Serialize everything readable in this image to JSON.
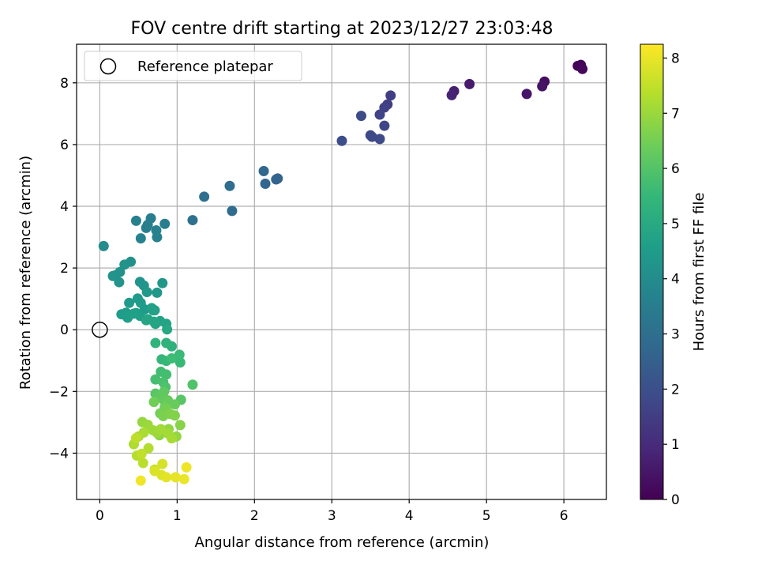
{
  "chart_data": {
    "type": "scatter",
    "title": "FOV centre drift starting at 2023/12/27 23:03:48",
    "xlabel": "Angular distance from reference (arcmin)",
    "ylabel": "Rotation from reference (arcmin)",
    "xlim": [
      -0.3,
      6.55
    ],
    "ylim": [
      -5.5,
      9.25
    ],
    "xticks": [
      0,
      1,
      2,
      3,
      4,
      5,
      6
    ],
    "yticks": [
      -4,
      -2,
      0,
      2,
      4,
      6,
      8
    ],
    "grid": true,
    "legend": {
      "position": "top-left",
      "entries": [
        "Reference platepar"
      ]
    },
    "reference_point": {
      "x": 0,
      "y": 0,
      "label": "Reference platepar"
    },
    "colorbar": {
      "label": "Hours from first FF file",
      "colormap": "viridis",
      "range": [
        0,
        8.25
      ],
      "ticks": [
        0,
        1,
        2,
        3,
        4,
        5,
        6,
        7,
        8
      ]
    },
    "series": [
      {
        "x": [
          6.18,
          6.22,
          6.24,
          5.75,
          5.72,
          5.52,
          4.78,
          4.58,
          4.55,
          3.76,
          3.72,
          3.68,
          3.62,
          3.68,
          3.5,
          3.52,
          3.62,
          3.38,
          3.13,
          2.3,
          2.28,
          2.14,
          2.12,
          1.71,
          1.68,
          1.35,
          1.2,
          0.84,
          0.66,
          0.62,
          0.6,
          0.73,
          0.74,
          0.47,
          0.53,
          0.05,
          0.2,
          0.4,
          0.32,
          0.26,
          0.25,
          0.17,
          0.52,
          0.57,
          0.81,
          0.61,
          0.74,
          0.49,
          0.38,
          0.53,
          0.58,
          0.69,
          0.28,
          0.34,
          0.47,
          0.52,
          0.36,
          0.44,
          0.62,
          0.67,
          0.71,
          0.78,
          0.86,
          0.72,
          0.6,
          0.7,
          0.87,
          0.93,
          0.86,
          0.72,
          0.8,
          0.86,
          1.04,
          1.03,
          0.93,
          0.79,
          0.86,
          0.72,
          0.82,
          0.85,
          1.2,
          1.05,
          0.72,
          0.76,
          0.83,
          0.82,
          0.88,
          0.97,
          0.84,
          0.7,
          0.78,
          0.86,
          0.82,
          0.91,
          0.97,
          1.04,
          0.77,
          0.89,
          0.99,
          0.55,
          0.62,
          0.69,
          0.74,
          0.79,
          0.88,
          0.93,
          0.5,
          0.57,
          0.44,
          0.63,
          0.48,
          0.56,
          0.47,
          0.54,
          0.71,
          0.81,
          0.71,
          0.8,
          0.86,
          0.98,
          1.09,
          1.12,
          0.53
        ],
        "y": [
          8.55,
          8.58,
          8.45,
          8.04,
          7.89,
          7.64,
          7.96,
          7.73,
          7.6,
          7.59,
          7.3,
          7.2,
          6.97,
          6.61,
          6.3,
          6.25,
          6.18,
          6.93,
          6.12,
          4.9,
          4.87,
          4.73,
          5.14,
          3.85,
          4.66,
          4.31,
          3.55,
          3.43,
          3.61,
          3.4,
          3.3,
          3.22,
          3.0,
          3.53,
          2.96,
          2.71,
          1.76,
          2.2,
          2.11,
          1.87,
          1.54,
          1.74,
          1.55,
          1.43,
          1.51,
          1.22,
          1.2,
          1.01,
          0.87,
          0.87,
          0.66,
          0.63,
          0.5,
          0.55,
          0.54,
          0.45,
          0.39,
          0.52,
          0.34,
          0.7,
          0.63,
          0.28,
          0.19,
          0.19,
          0.31,
          0.26,
          0.01,
          -0.54,
          -0.43,
          -0.43,
          -0.96,
          -1.01,
          -1.06,
          -0.81,
          -0.93,
          -1.36,
          -1.45,
          -1.61,
          -1.7,
          -1.86,
          -1.78,
          -2.27,
          -2.07,
          -2.18,
          -2.01,
          -2.26,
          -2.29,
          -2.42,
          -2.51,
          -2.34,
          -2.71,
          -2.58,
          -2.8,
          -2.73,
          -2.78,
          -3.09,
          -3.42,
          -3.22,
          -3.46,
          -2.99,
          -3.08,
          -3.26,
          -3.34,
          -3.22,
          -3.36,
          -3.52,
          -3.46,
          -3.33,
          -3.71,
          -3.84,
          -4.08,
          -4.32,
          -3.51,
          -4.02,
          -4.53,
          -4.35,
          -4.58,
          -4.71,
          -4.78,
          -4.78,
          -4.84,
          -4.46,
          -4.89
        ],
        "hours": [
          0.05,
          0.1,
          0.15,
          0.3,
          0.4,
          0.5,
          0.6,
          0.7,
          0.8,
          1.5,
          1.55,
          1.6,
          1.65,
          1.7,
          1.75,
          1.8,
          1.85,
          1.9,
          1.95,
          2.6,
          2.65,
          2.7,
          2.75,
          2.9,
          2.95,
          3.0,
          3.05,
          3.5,
          3.5,
          3.55,
          3.55,
          3.6,
          3.6,
          3.6,
          3.65,
          4.0,
          4.1,
          4.15,
          4.2,
          4.2,
          4.25,
          4.25,
          4.3,
          4.3,
          4.35,
          4.4,
          4.4,
          4.45,
          4.45,
          4.5,
          4.5,
          4.55,
          4.55,
          4.55,
          4.6,
          4.6,
          4.6,
          4.65,
          4.65,
          4.7,
          4.7,
          4.75,
          4.8,
          4.8,
          4.85,
          4.85,
          4.9,
          5.25,
          5.3,
          5.35,
          5.45,
          5.5,
          5.55,
          5.6,
          5.65,
          5.7,
          5.75,
          5.8,
          5.85,
          5.9,
          5.95,
          6.05,
          6.1,
          6.15,
          6.2,
          6.25,
          6.3,
          6.35,
          6.4,
          6.45,
          6.5,
          6.55,
          6.6,
          6.65,
          6.7,
          6.75,
          6.8,
          6.85,
          6.9,
          6.95,
          7.0,
          7.05,
          7.05,
          7.1,
          7.1,
          7.15,
          7.15,
          7.2,
          7.25,
          7.3,
          7.35,
          7.4,
          7.45,
          7.5,
          7.55,
          7.75,
          7.8,
          7.85,
          7.9,
          7.95,
          8.0,
          8.05,
          8.1
        ]
      }
    ]
  }
}
